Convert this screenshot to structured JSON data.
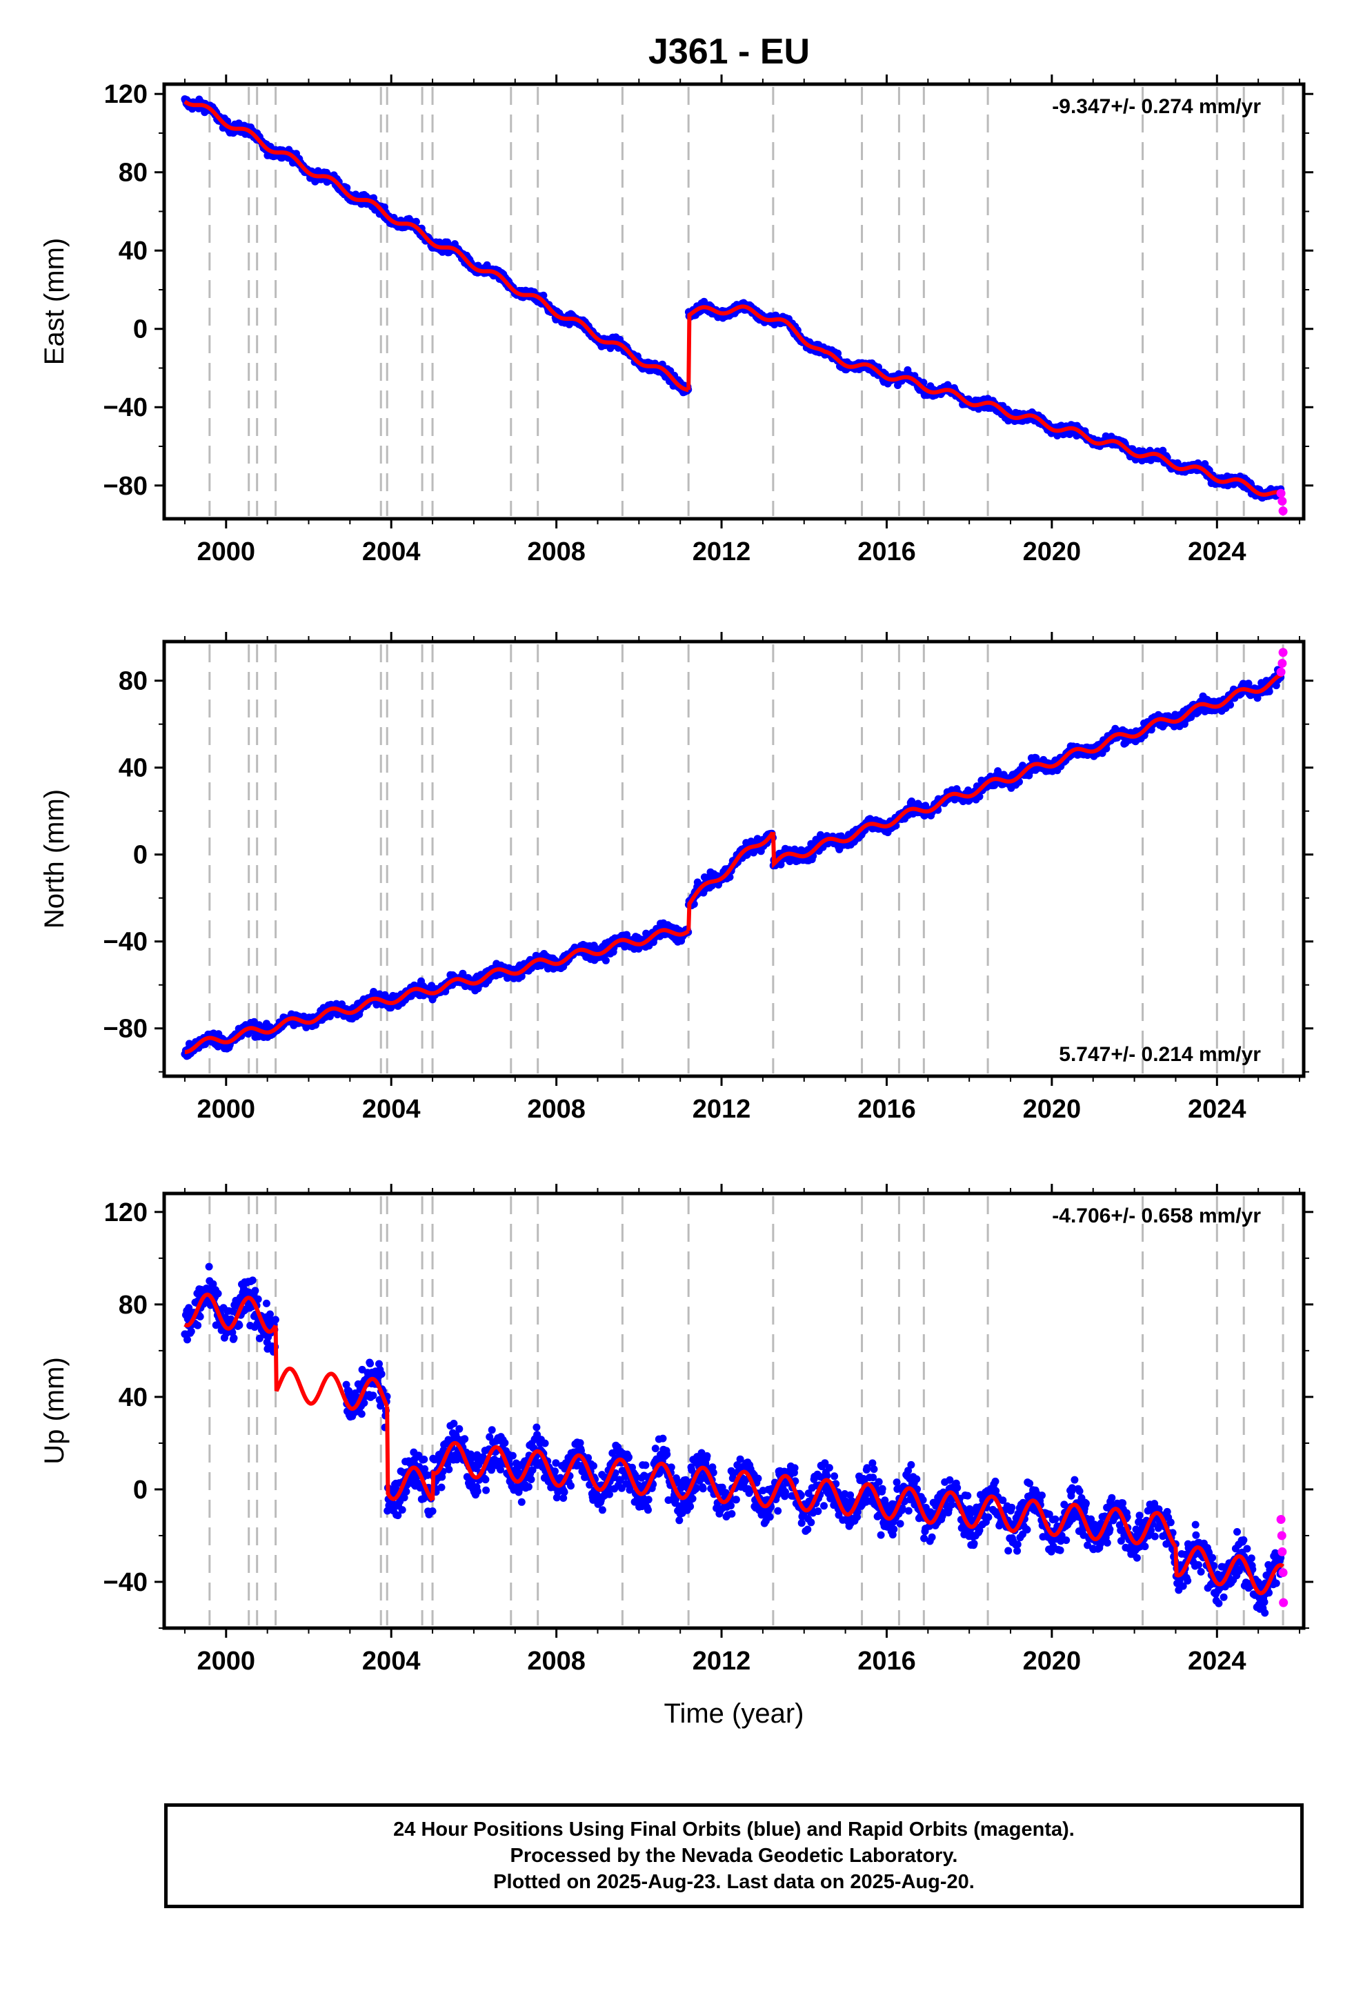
{
  "title": "J361 - EU",
  "xlabel": "Time (year)",
  "caption": {
    "line1": "24 Hour Positions Using Final Orbits (blue) and Rapid Orbits (magenta).",
    "line2": "Processed by the Nevada Geodetic Laboratory.",
    "line3": "Plotted on 2025-Aug-23. Last data on 2025-Aug-20."
  },
  "colors": {
    "final_orbits": "#0000ff",
    "rapid_orbits": "#ff00ff",
    "model": "#ff0000",
    "event_lines": "#bbbbbb"
  },
  "chart_data": [
    {
      "type": "scatter",
      "component": "East",
      "ylabel": "East (mm)",
      "rate_label": "-9.347+/- 0.274 mm/yr",
      "rate_label_position": "top-right",
      "xlim": [
        1998.5,
        2026.1
      ],
      "ylim": [
        -97,
        125
      ],
      "yticks": [
        -80,
        -40,
        0,
        40,
        80,
        120
      ],
      "xticks": [
        2000,
        2004,
        2008,
        2012,
        2016,
        2020,
        2024
      ],
      "grid": false,
      "event_lines": [
        1999.6,
        2000.55,
        2000.75,
        2001.2,
        2003.75,
        2003.9,
        2004.75,
        2005.0,
        2006.9,
        2007.55,
        2009.6,
        2011.2,
        2013.25,
        2015.4,
        2016.3,
        2016.9,
        2018.45,
        2022.2,
        2024.0,
        2024.65,
        2025.6
      ],
      "model": {
        "segments": [
          {
            "start": 1999.0,
            "end": 2011.2,
            "start_value": 118,
            "end_value": -30
          },
          {
            "start": 2011.2,
            "end": 2025.6,
            "start_value": 8,
            "end_value": -86
          }
        ],
        "bump": {
          "start": 2011.2,
          "peak": 2013.0,
          "end": 2014.5,
          "amplitude": 11
        },
        "seasonal_amplitude": 2,
        "scatter": 2.5
      },
      "rapid_points": [
        [
          2025.55,
          -84
        ],
        [
          2025.58,
          -88
        ],
        [
          2025.6,
          -93
        ]
      ]
    },
    {
      "type": "scatter",
      "component": "North",
      "ylabel": "North (mm)",
      "rate_label": "5.747+/- 0.214 mm/yr",
      "rate_label_position": "bottom-right",
      "xlim": [
        1998.5,
        2026.1
      ],
      "ylim": [
        -102,
        98
      ],
      "yticks": [
        -80,
        -40,
        0,
        40,
        80
      ],
      "xticks": [
        2000,
        2004,
        2008,
        2012,
        2016,
        2020,
        2024
      ],
      "grid": false,
      "event_lines": [
        1999.6,
        2000.55,
        2000.75,
        2001.2,
        2003.75,
        2003.9,
        2004.75,
        2005.0,
        2006.9,
        2007.55,
        2009.6,
        2011.2,
        2013.25,
        2015.4,
        2016.3,
        2016.9,
        2018.45,
        2022.2,
        2024.0,
        2024.65,
        2025.6
      ],
      "model": {
        "segments": [
          {
            "start": 1999.0,
            "end": 2011.2,
            "start_value": -89,
            "end_value": -34
          },
          {
            "start": 2011.2,
            "end": 2013.25,
            "start_value": -22,
            "end_value": 11
          },
          {
            "start": 2013.25,
            "end": 2025.6,
            "start_value": -4,
            "end_value": 81
          }
        ],
        "seasonal_amplitude": 2,
        "scatter": 3
      },
      "rapid_points": [
        [
          2025.55,
          84
        ],
        [
          2025.58,
          88
        ],
        [
          2025.6,
          93
        ]
      ]
    },
    {
      "type": "scatter",
      "component": "Up",
      "ylabel": "Up (mm)",
      "rate_label": "-4.706+/- 0.658 mm/yr",
      "rate_label_position": "top-right",
      "xlim": [
        1998.5,
        2026.1
      ],
      "ylim": [
        -60,
        128
      ],
      "yticks": [
        -40,
        0,
        40,
        80,
        120
      ],
      "xticks": [
        2000,
        2004,
        2008,
        2012,
        2016,
        2020,
        2024
      ],
      "grid": false,
      "event_lines": [
        1999.6,
        2000.55,
        2000.75,
        2001.2,
        2003.75,
        2003.9,
        2004.75,
        2005.0,
        2006.9,
        2007.55,
        2009.6,
        2011.2,
        2013.25,
        2015.4,
        2016.3,
        2016.9,
        2018.45,
        2022.2,
        2024.0,
        2024.65,
        2025.6
      ],
      "model": {
        "segments": [
          {
            "start": 1999.0,
            "end": 2001.2,
            "start_value": 78,
            "end_value": 75
          },
          {
            "start": 2001.2,
            "end": 2003.9,
            "start_value": 46,
            "end_value": 40
          },
          {
            "start": 2003.9,
            "end": 2005.0,
            "start_value": 3,
            "end_value": 2
          },
          {
            "start": 2005.0,
            "end": 2023.0,
            "start_value": 14,
            "end_value": -18
          },
          {
            "start": 2023.0,
            "end": 2025.6,
            "start_value": -30,
            "end_value": -40
          }
        ],
        "seasonal_amplitude": 7,
        "scatter": 9,
        "data_gaps": [
          [
            2001.2,
            2002.9
          ]
        ]
      },
      "rapid_points": [
        [
          2025.55,
          -13
        ],
        [
          2025.57,
          -20
        ],
        [
          2025.58,
          -27
        ],
        [
          2025.6,
          -36
        ],
        [
          2025.61,
          -49
        ]
      ]
    }
  ]
}
